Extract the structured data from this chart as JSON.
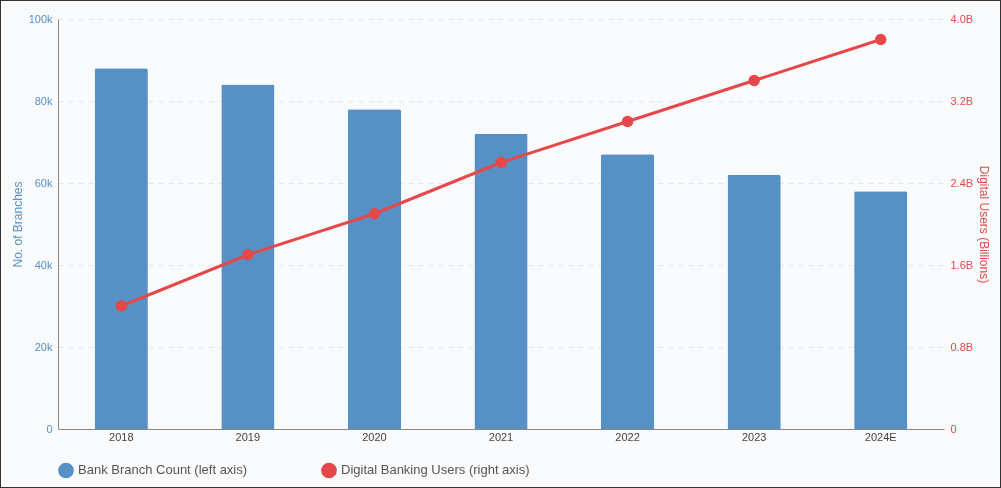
{
  "chart_data": {
    "type": "bar",
    "categories": [
      "2018",
      "2019",
      "2020",
      "2021",
      "2022",
      "2023",
      "2024E"
    ],
    "series": [
      {
        "name": "Bank Branch Count (left axis)",
        "color": "#5790c5",
        "values": [
          88000,
          84000,
          78000,
          72000,
          67000,
          62000,
          58000
        ]
      },
      {
        "name": "Digital Banking Users (right axis)",
        "type": "line",
        "axis": "y2",
        "color": "#e5484a",
        "values": [
          1.2,
          1.7,
          2.1,
          2.6,
          3.0,
          3.4,
          3.8
        ]
      }
    ],
    "ylabel": "No. of Branches",
    "y2label": "Digital Users (Billions)",
    "ylim": [
      0,
      100000
    ],
    "yticks": [
      0,
      {
        "value": 20000,
        "label": "20k"
      },
      {
        "value": 40000,
        "label": "40k"
      },
      {
        "value": 60000,
        "label": "60k"
      },
      {
        "value": 80000,
        "label": "80k"
      },
      {
        "value": 100000,
        "label": "100k"
      }
    ],
    "y2lim": [
      0,
      4
    ],
    "y2ticks": [
      0,
      {
        "value": 0.8,
        "label": "0.8B"
      },
      {
        "value": 1.6,
        "label": "1.6B"
      },
      {
        "value": 2.4,
        "label": "2.4B"
      },
      {
        "value": 3.2,
        "label": "3.2B"
      },
      {
        "value": 4,
        "label": "4.0B"
      }
    ],
    "grid": "y",
    "legend": "bottom",
    "marker": "circle",
    "line_style": "solid"
  }
}
